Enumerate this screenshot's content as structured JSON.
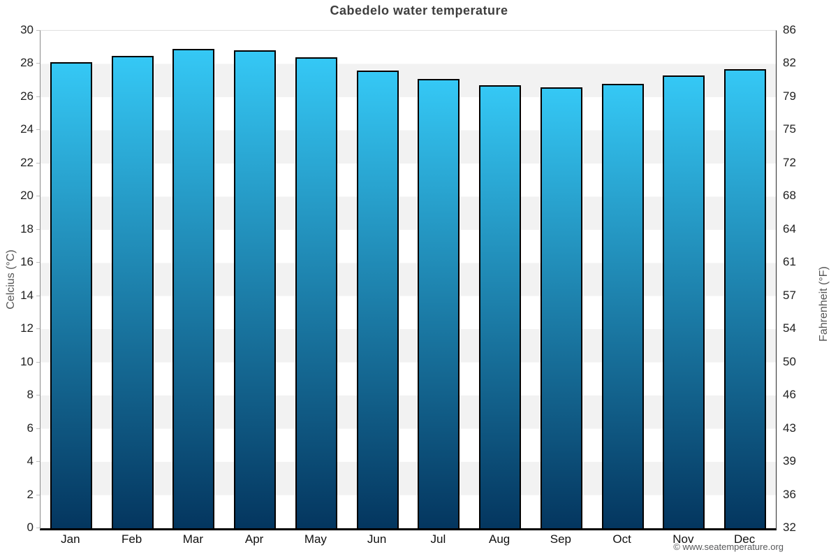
{
  "title": "Cabedelo water temperature",
  "chart_data": {
    "type": "bar",
    "title": "Cabedelo water temperature",
    "categories": [
      "Jan",
      "Feb",
      "Mar",
      "Apr",
      "May",
      "Jun",
      "Jul",
      "Aug",
      "Sep",
      "Oct",
      "Nov",
      "Dec"
    ],
    "values": [
      28.1,
      28.5,
      28.9,
      28.8,
      28.4,
      27.6,
      27.1,
      26.7,
      26.6,
      26.8,
      27.3,
      27.7
    ],
    "ylabel_left": "Celcius (°C)",
    "ylabel_right": "Fahrenheit (°F)",
    "ylim_celsius": [
      0,
      30
    ],
    "yticks_celsius": [
      0,
      2,
      4,
      6,
      8,
      10,
      12,
      14,
      16,
      18,
      20,
      22,
      24,
      26,
      28,
      30
    ],
    "yticks_fahrenheit": [
      32,
      36,
      39,
      43,
      46,
      50,
      54,
      57,
      61,
      64,
      68,
      72,
      75,
      79,
      82,
      86
    ],
    "grid": "alternating horizontal bands every 2°C",
    "legend": "none",
    "colors": {
      "bar_gradient_top": "#35c8f5",
      "bar_gradient_bottom": "#04365f",
      "bar_border": "#000000",
      "band_gray": "#f2f2f2",
      "band_white": "#ffffff",
      "title_text": "#3e3e3e",
      "axis_text": "#222222",
      "baseline": "#000000"
    }
  },
  "footer": {
    "copyright": "© www.seatemperature.org"
  }
}
